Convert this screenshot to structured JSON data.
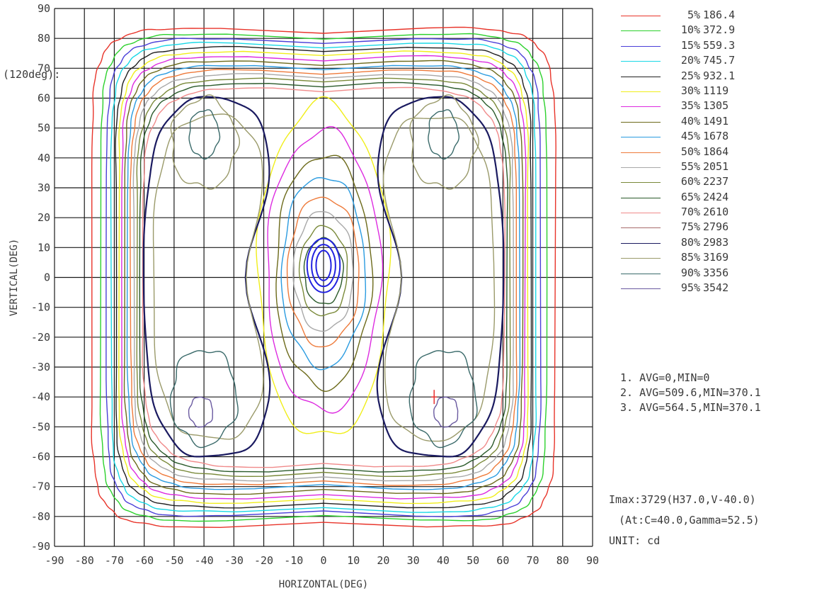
{
  "chart_data": {
    "type": "contour",
    "xlabel": "HORIZONTAL(DEG)",
    "ylabel": "VERTICAL(DEG)",
    "side_label": "(120deg):",
    "xlim": [
      -90,
      90
    ],
    "ylim": [
      -90,
      90
    ],
    "x_ticks": [
      -90,
      -80,
      -70,
      -60,
      -50,
      -40,
      -30,
      -20,
      -10,
      0,
      10,
      20,
      30,
      40,
      50,
      60,
      70,
      80,
      90
    ],
    "y_ticks": [
      90,
      80,
      70,
      60,
      50,
      40,
      30,
      20,
      10,
      0,
      -10,
      -20,
      -30,
      -40,
      -50,
      -60,
      -70,
      -80,
      -90
    ],
    "grid": true,
    "legend_position": "right",
    "levels": [
      {
        "pct": "5%",
        "value": "186.4",
        "color": "#e8342a"
      },
      {
        "pct": "10%",
        "value": "372.9",
        "color": "#2cd12c"
      },
      {
        "pct": "15%",
        "value": "559.3",
        "color": "#4a3fd8"
      },
      {
        "pct": "20%",
        "value": "745.7",
        "color": "#19d8e6"
      },
      {
        "pct": "25%",
        "value": "932.1",
        "color": "#1f1f1f"
      },
      {
        "pct": "30%",
        "value": "1119",
        "color": "#f0ee1a"
      },
      {
        "pct": "35%",
        "value": "1305",
        "color": "#dd2be0"
      },
      {
        "pct": "40%",
        "value": "1491",
        "color": "#6c6a1a"
      },
      {
        "pct": "45%",
        "value": "1678",
        "color": "#2a9be0"
      },
      {
        "pct": "50%",
        "value": "1864",
        "color": "#ee7a3a"
      },
      {
        "pct": "55%",
        "value": "2051",
        "color": "#a8a8a8"
      },
      {
        "pct": "60%",
        "value": "2237",
        "color": "#7a8a3a"
      },
      {
        "pct": "65%",
        "value": "2424",
        "color": "#2a5a2a"
      },
      {
        "pct": "70%",
        "value": "2610",
        "color": "#f08a8a"
      },
      {
        "pct": "75%",
        "value": "2796",
        "color": "#a86a6a"
      },
      {
        "pct": "80%",
        "value": "2983",
        "color": "#1a1a60"
      },
      {
        "pct": "85%",
        "value": "3169",
        "color": "#9a9a6a"
      },
      {
        "pct": "90%",
        "value": "3356",
        "color": "#3a6a6a"
      },
      {
        "pct": "95%",
        "value": "3542",
        "color": "#6a5aa0"
      }
    ],
    "peak_color": "#2222e0",
    "marker": {
      "h": 37.0,
      "v": -40.0,
      "color": "#e83030"
    },
    "stats": [
      "1. AVG=0,MIN=0",
      "2. AVG=509.6,MIN=370.1",
      "3. AVG=564.5,MIN=370.1"
    ],
    "imax": "Imax:3729(H37.0,V-40.0)",
    "at": "(At:C=40.0,Gamma=52.5)",
    "unit": "UNIT: cd"
  }
}
